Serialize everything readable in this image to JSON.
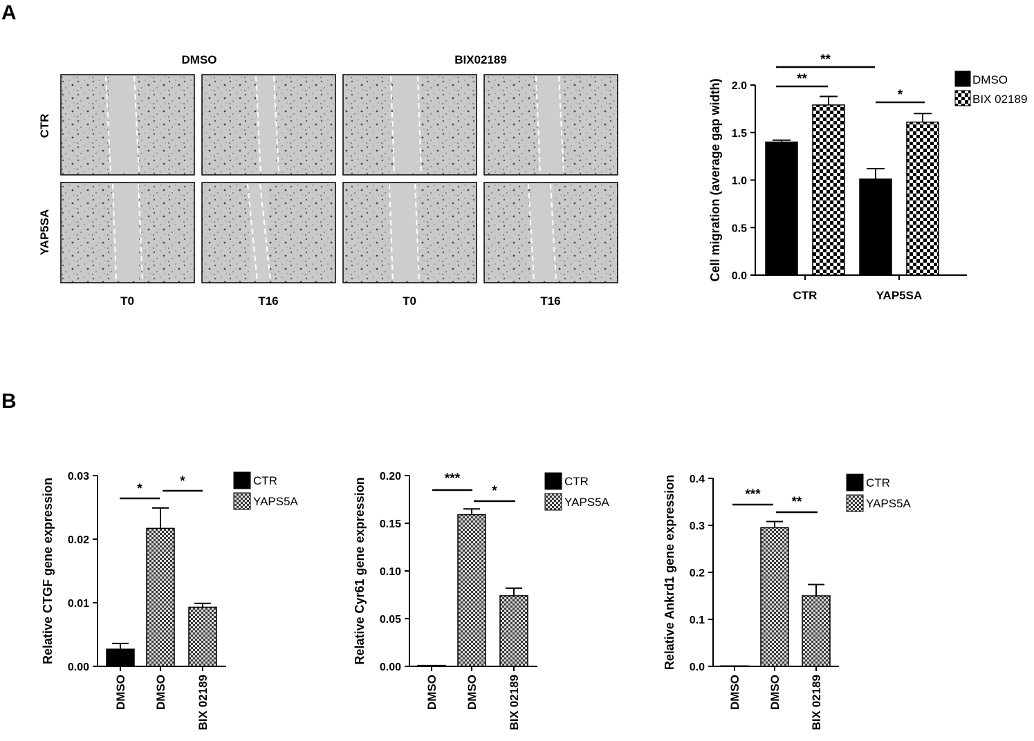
{
  "figure": {
    "panel_a_label": "A",
    "panel_b_label": "B",
    "micrographs": {
      "column_groups": [
        "DMSO",
        "BIX02189"
      ],
      "row_labels": [
        "CTR",
        "YAP5SA"
      ],
      "column_labels": [
        "T0",
        "T16",
        "T0",
        "T16"
      ]
    }
  },
  "chart_data": [
    {
      "type": "bar",
      "ylabel": "Cell migration (average gap width)",
      "xlabel": "",
      "categories": [
        "CTR",
        "YAP5SA"
      ],
      "ylim": [
        0,
        2.0
      ],
      "yticks": [
        "0.0",
        "0.5",
        "1.0",
        "1.5",
        "2.0"
      ],
      "series": [
        {
          "name": "DMSO",
          "values": [
            1.4,
            1.01
          ],
          "errors": [
            0.02,
            0.11
          ],
          "fill": "solid"
        },
        {
          "name": "BIX 02189",
          "values": [
            1.79,
            1.61
          ],
          "errors": [
            0.09,
            0.09
          ],
          "fill": "checker"
        }
      ],
      "legend_position": "top-right",
      "significance": [
        {
          "label": "**"
        },
        {
          "label": "**"
        },
        {
          "label": "*"
        }
      ]
    },
    {
      "type": "bar",
      "ylabel": "Relative CTGF gene expression",
      "categories": [
        "DMSO",
        "DMSO",
        "BIX 02189"
      ],
      "ylim": [
        0,
        0.03
      ],
      "yticks": [
        "0.00",
        "0.01",
        "0.02",
        "0.03"
      ],
      "bars": [
        {
          "value": 0.0027,
          "error": 0.0009,
          "fill": "solid"
        },
        {
          "value": 0.0217,
          "error": 0.0032,
          "fill": "checker"
        },
        {
          "value": 0.0093,
          "error": 0.0006,
          "fill": "checker"
        }
      ],
      "legend": [
        {
          "name": "CTR",
          "fill": "solid"
        },
        {
          "name": "YAPS5A",
          "fill": "checker"
        }
      ],
      "legend_position": "top-right",
      "significance": [
        {
          "label": "*"
        },
        {
          "label": "*"
        }
      ]
    },
    {
      "type": "bar",
      "ylabel": "Relative Cyr61 gene expression",
      "categories": [
        "DMSO",
        "DMSO",
        "BIX 02189"
      ],
      "ylim": [
        0,
        0.2
      ],
      "yticks": [
        "0.00",
        "0.05",
        "0.10",
        "0.15",
        "0.20"
      ],
      "bars": [
        {
          "value": 0.001,
          "error": 0,
          "fill": "solid"
        },
        {
          "value": 0.159,
          "error": 0.006,
          "fill": "checker"
        },
        {
          "value": 0.074,
          "error": 0.008,
          "fill": "checker"
        }
      ],
      "legend": [
        {
          "name": "CTR",
          "fill": "solid"
        },
        {
          "name": "YAPS5A",
          "fill": "checker"
        }
      ],
      "legend_position": "top-right",
      "significance": [
        {
          "label": "***"
        },
        {
          "label": "*"
        }
      ]
    },
    {
      "type": "bar",
      "ylabel": "Relative Ankrd1 gene expression",
      "categories": [
        "DMSO",
        "DMSO",
        "BIX 02189"
      ],
      "ylim": [
        0,
        0.4
      ],
      "yticks": [
        "0.0",
        "0.1",
        "0.2",
        "0.3",
        "0.4"
      ],
      "bars": [
        {
          "value": 0.001,
          "error": 0,
          "fill": "solid"
        },
        {
          "value": 0.295,
          "error": 0.013,
          "fill": "checker"
        },
        {
          "value": 0.15,
          "error": 0.024,
          "fill": "checker"
        }
      ],
      "legend": [
        {
          "name": "CTR",
          "fill": "solid"
        },
        {
          "name": "YAPS5A",
          "fill": "checker"
        }
      ],
      "legend_position": "top-right",
      "significance": [
        {
          "label": "***"
        },
        {
          "label": "**"
        }
      ]
    }
  ]
}
